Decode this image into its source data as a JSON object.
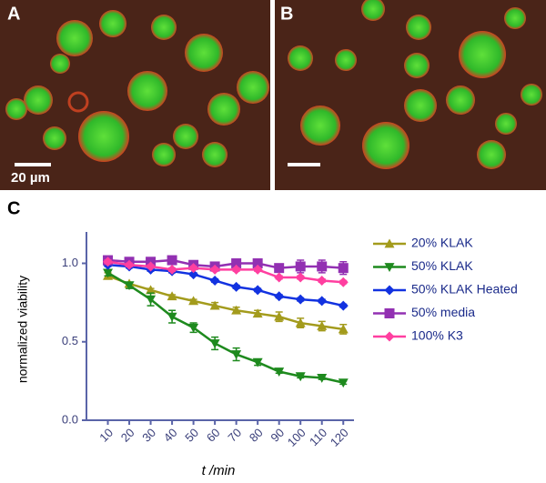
{
  "panels": {
    "a": "A",
    "b": "B",
    "c": "C",
    "scale_bar": "20 µm"
  },
  "chart_data": {
    "type": "line",
    "ylabel": "normalized viability",
    "xlabel": "t /min",
    "x": [
      10,
      20,
      30,
      40,
      50,
      60,
      70,
      80,
      90,
      100,
      110,
      120
    ],
    "xlim": [
      0,
      125
    ],
    "xticks": [
      10,
      20,
      30,
      40,
      50,
      60,
      70,
      80,
      90,
      100,
      110,
      120
    ],
    "ylim": [
      0,
      1.2
    ],
    "yticks": [
      {
        "value": 0,
        "label": "0.0"
      },
      0.5,
      {
        "value": 1,
        "label": "1.0"
      }
    ],
    "series": [
      {
        "name": "20% KLAK",
        "color": "#a39b1c",
        "marker": "triangle-up",
        "values": [
          0.92,
          0.87,
          0.83,
          0.79,
          0.76,
          0.73,
          0.7,
          0.68,
          0.66,
          0.62,
          0.6,
          0.58
        ],
        "errors": [
          0.02,
          0.01,
          0.01,
          0.01,
          0.01,
          0.02,
          0.02,
          0.02,
          0.03,
          0.03,
          0.03,
          0.03
        ]
      },
      {
        "name": "50% KLAK",
        "color": "#1e8a1e",
        "marker": "triangle-down",
        "values": [
          0.94,
          0.86,
          0.77,
          0.66,
          0.59,
          0.49,
          0.42,
          0.37,
          0.31,
          0.28,
          0.27,
          0.24
        ],
        "errors": [
          0.02,
          0.02,
          0.04,
          0.04,
          0.03,
          0.04,
          0.04,
          0.02,
          0.01,
          0.01,
          0.01,
          0.01
        ]
      },
      {
        "name": "50% KLAK Heated",
        "color": "#1232e0",
        "marker": "diamond",
        "values": [
          0.99,
          0.98,
          0.96,
          0.95,
          0.93,
          0.89,
          0.85,
          0.83,
          0.79,
          0.77,
          0.76,
          0.73
        ],
        "errors": [
          0.01,
          0.01,
          0.01,
          0.01,
          0.01,
          0.01,
          0.01,
          0.01,
          0.01,
          0.01,
          0.01,
          0.01
        ]
      },
      {
        "name": "50% media",
        "color": "#9230b2",
        "marker": "square",
        "values": [
          1.02,
          1.01,
          1.01,
          1.02,
          0.99,
          0.98,
          1.0,
          1.0,
          0.97,
          0.98,
          0.98,
          0.97
        ],
        "errors": [
          0.01,
          0.01,
          0.01,
          0.01,
          0.01,
          0.01,
          0.02,
          0.02,
          0.02,
          0.04,
          0.04,
          0.04
        ]
      },
      {
        "name": "100% K3",
        "color": "#ff3fa0",
        "marker": "diamond",
        "values": [
          1.01,
          0.99,
          0.98,
          0.96,
          0.97,
          0.96,
          0.96,
          0.96,
          0.91,
          0.91,
          0.89,
          0.88
        ],
        "errors": [
          0.01,
          0.01,
          0.01,
          0.01,
          0.01,
          0.01,
          0.01,
          0.01,
          0.01,
          0.01,
          0.01,
          0.01
        ]
      }
    ]
  }
}
